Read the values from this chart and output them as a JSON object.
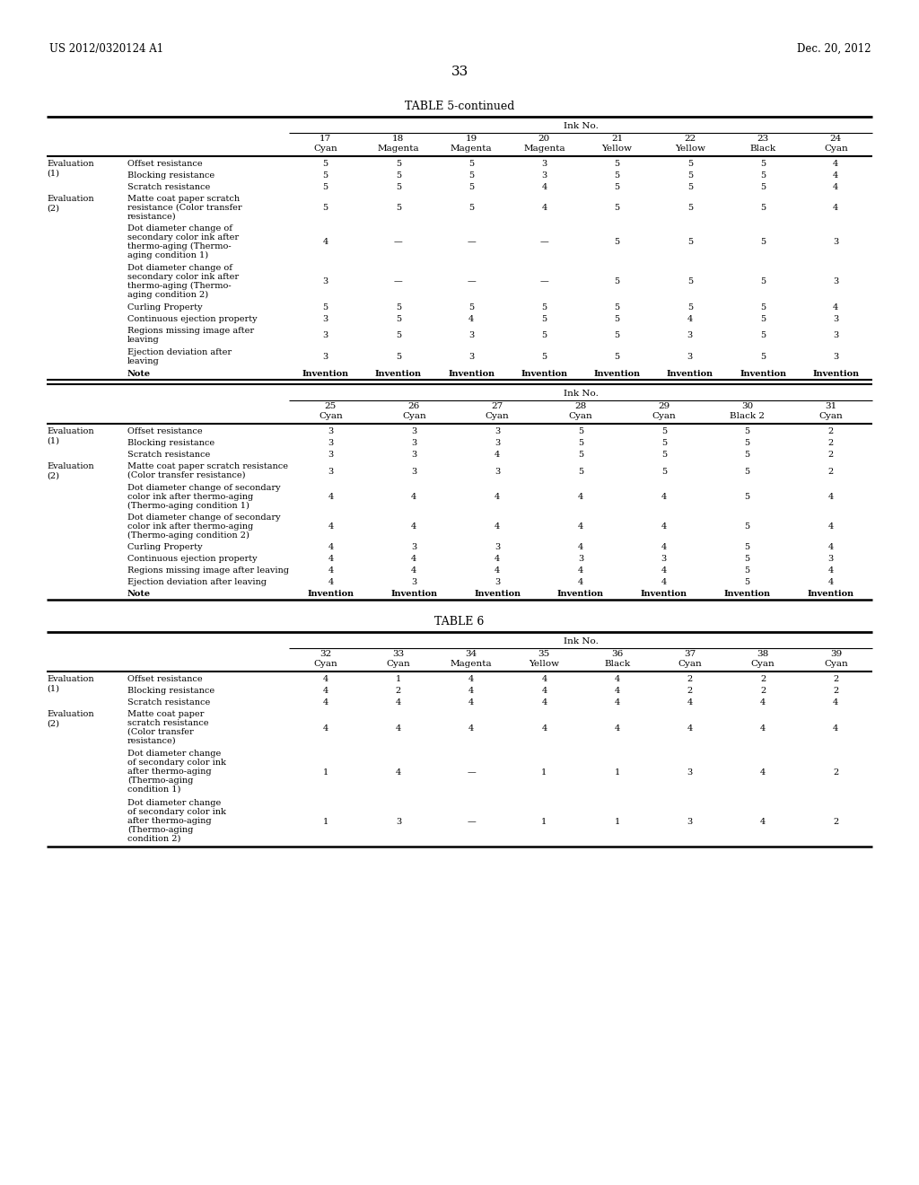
{
  "page_header_left": "US 2012/0320124 A1",
  "page_header_right": "Dec. 20, 2012",
  "page_number": "33",
  "bg_color": "#ffffff"
}
